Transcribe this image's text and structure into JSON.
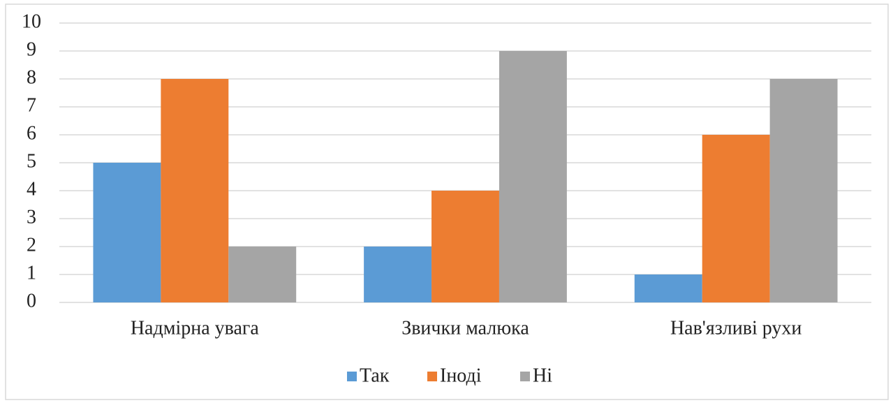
{
  "chart_data": {
    "type": "bar",
    "categories": [
      "Надмірна увага",
      "Звички малюка",
      "Нав'язливі рухи"
    ],
    "series": [
      {
        "name": "Так",
        "color": "#5b9bd5",
        "values": [
          5,
          2,
          1
        ]
      },
      {
        "name": "Іноді",
        "color": "#ed7d31",
        "values": [
          8,
          4,
          6
        ]
      },
      {
        "name": "Ні",
        "color": "#a5a5a5",
        "values": [
          2,
          9,
          8
        ]
      }
    ],
    "ylim": [
      0,
      10
    ],
    "yticks": [
      0,
      1,
      2,
      3,
      4,
      5,
      6,
      7,
      8,
      9,
      10
    ],
    "grid": true,
    "legend": "bottom"
  }
}
